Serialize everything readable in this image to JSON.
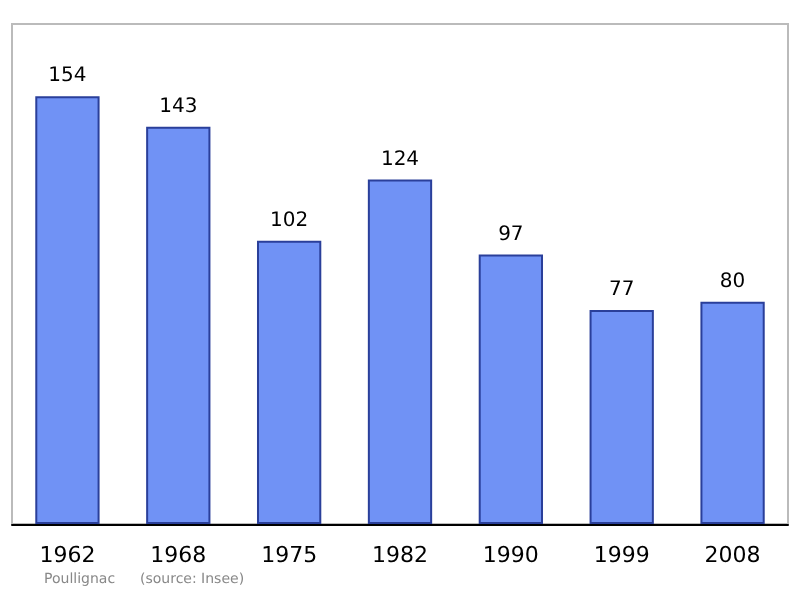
{
  "chart_data": {
    "type": "bar",
    "categories": [
      "1962",
      "1968",
      "1975",
      "1982",
      "1990",
      "1999",
      "2008"
    ],
    "values": [
      154,
      143,
      102,
      124,
      97,
      77,
      80
    ],
    "color": "#7092f5",
    "data_labels": true,
    "annotations": [
      "Poullignac",
      "(source: Insee)"
    ]
  }
}
